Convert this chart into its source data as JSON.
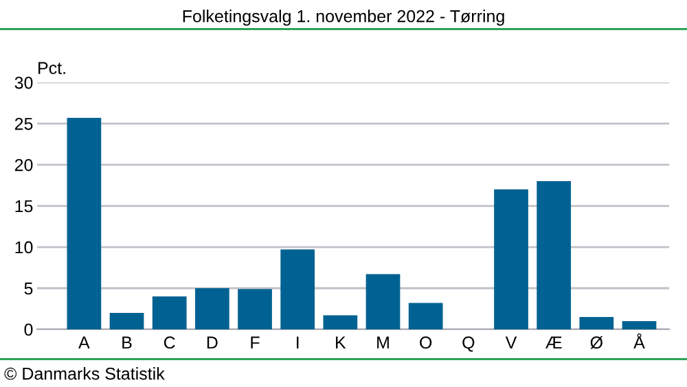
{
  "chart_data": {
    "type": "bar",
    "title": "Folketingsvalg 1. november 2022 - Tørring",
    "ylabel": "Pct.",
    "categories": [
      "A",
      "B",
      "C",
      "D",
      "F",
      "I",
      "K",
      "M",
      "O",
      "Q",
      "V",
      "Æ",
      "Ø",
      "Å"
    ],
    "values": [
      25.7,
      2.0,
      4.0,
      5.0,
      4.9,
      9.7,
      1.7,
      6.7,
      3.2,
      0,
      17.0,
      18.0,
      1.5,
      1.0
    ],
    "color": "#006292",
    "ylim": [
      0,
      30
    ],
    "yticks": [
      0,
      5,
      10,
      15,
      20,
      25,
      30
    ],
    "grid": "y",
    "annotations": [
      "© Danmarks Statistik"
    ]
  }
}
